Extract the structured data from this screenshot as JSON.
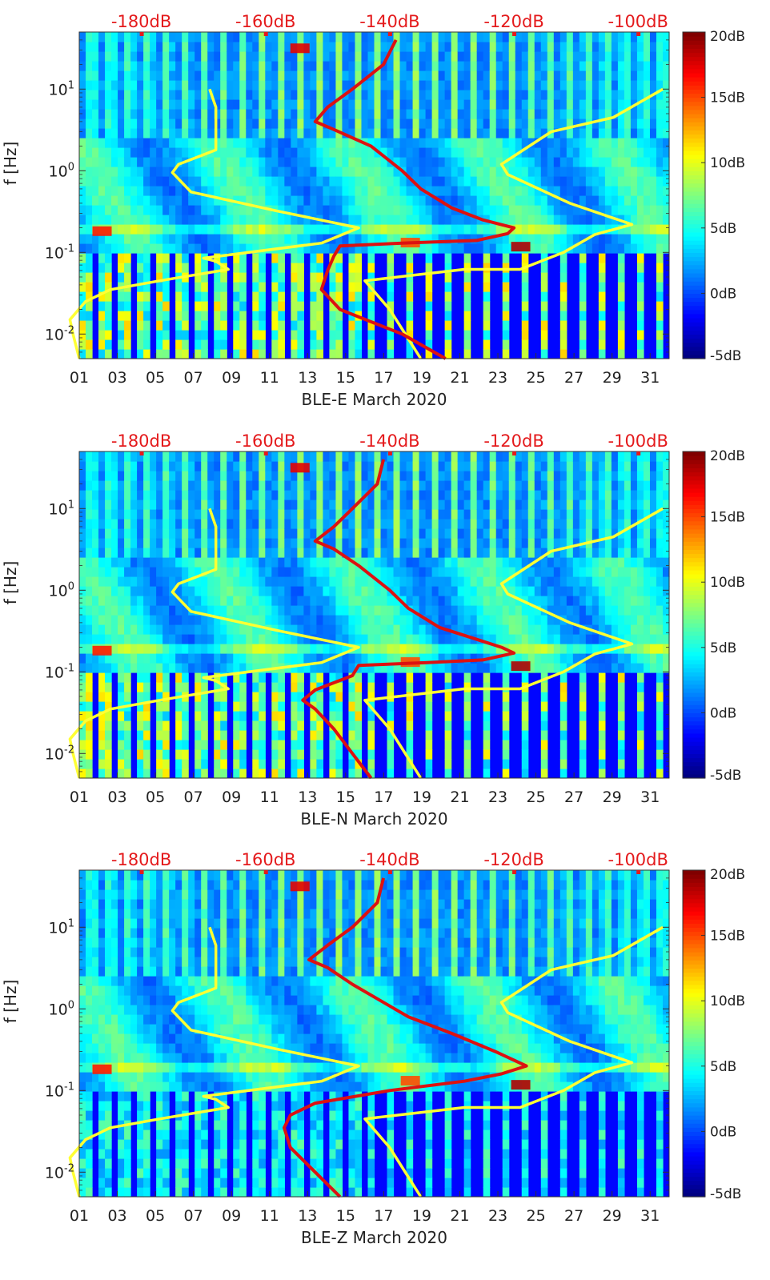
{
  "chart_data": [
    {
      "type": "heatmap",
      "title": "",
      "xlabel": "BLE-E March 2020",
      "ylabel": "f [Hz]",
      "x_tick_labels": [
        "01",
        "03",
        "05",
        "07",
        "09",
        "11",
        "13",
        "15",
        "17",
        "19",
        "21",
        "23",
        "25",
        "27",
        "29",
        "31"
      ],
      "x_range_days": [
        1,
        32
      ],
      "y_scale": "log",
      "y_range_hz": [
        0.005,
        50
      ],
      "y_tick_labels": [
        "10^-2",
        "10^-1",
        "10^0",
        "10^1"
      ],
      "top_axis_labels": [
        "-180dB",
        "-160dB",
        "-140dB",
        "-120dB",
        "-100dB"
      ],
      "top_axis_color": "#e41a1c",
      "colorbar": {
        "min": -5,
        "max": 20,
        "labels": [
          "20dB",
          "15dB",
          "10dB",
          "5dB",
          "0dB",
          "-5dB"
        ],
        "colormap": "jet"
      },
      "curves": [
        {
          "name": "yellow reference curve low (dB vs Hz)",
          "color": "#ffff33",
          "points": [
            [
              -190,
              0.005
            ],
            [
              -191,
              0.01
            ],
            [
              -191.5,
              0.015
            ],
            [
              -189,
              0.025
            ],
            [
              -185,
              0.035
            ],
            [
              -177,
              0.045
            ],
            [
              -166,
              0.062
            ],
            [
              -168,
              0.078
            ],
            [
              -170,
              0.085
            ],
            [
              -151,
              0.13
            ],
            [
              -145,
              0.2
            ],
            [
              -158,
              0.32
            ],
            [
              -172,
              0.55
            ],
            [
              -175,
              0.95
            ],
            [
              -174,
              1.2
            ],
            [
              -168,
              1.8
            ],
            [
              -168,
              2.5
            ],
            [
              -168,
              6
            ],
            [
              -169,
              10
            ]
          ]
        },
        {
          "name": "yellow reference curve high (dB vs Hz)",
          "color": "#ffff33",
          "points": [
            [
              -135,
              0.005
            ],
            [
              -140,
              0.02
            ],
            [
              -144,
              0.045
            ],
            [
              -128,
              0.062
            ],
            [
              -119,
              0.062
            ],
            [
              -112,
              0.1
            ],
            [
              -107,
              0.165
            ],
            [
              -101,
              0.22
            ],
            [
              -111,
              0.4
            ],
            [
              -121,
              0.9
            ],
            [
              -122,
              1.2
            ],
            [
              -114,
              3
            ],
            [
              -104,
              4.5
            ],
            [
              -96,
              10
            ]
          ]
        },
        {
          "name": "red station noise spectrum (dB vs Hz)",
          "color": "#dd1111",
          "points": [
            [
              -131,
              0.005
            ],
            [
              -138,
              0.01
            ],
            [
              -148,
              0.02
            ],
            [
              -151,
              0.035
            ],
            [
              -150,
              0.06
            ],
            [
              -149,
              0.09
            ],
            [
              -148,
              0.12
            ],
            [
              -138,
              0.13
            ],
            [
              -126,
              0.14
            ],
            [
              -121,
              0.17
            ],
            [
              -120,
              0.2
            ],
            [
              -125,
              0.25
            ],
            [
              -130,
              0.35
            ],
            [
              -135,
              0.6
            ],
            [
              -138,
              1.0
            ],
            [
              -143,
              2.0
            ],
            [
              -149,
              3.2
            ],
            [
              -152,
              4
            ],
            [
              -150,
              6
            ],
            [
              -146,
              10
            ],
            [
              -141,
              20
            ],
            [
              -139,
              40
            ]
          ]
        }
      ]
    },
    {
      "type": "heatmap",
      "title": "",
      "xlabel": "BLE-N March 2020",
      "ylabel": "f [Hz]",
      "x_tick_labels": [
        "01",
        "03",
        "05",
        "07",
        "09",
        "11",
        "13",
        "15",
        "17",
        "19",
        "21",
        "23",
        "25",
        "27",
        "29",
        "31"
      ],
      "x_range_days": [
        1,
        32
      ],
      "y_scale": "log",
      "y_range_hz": [
        0.005,
        50
      ],
      "y_tick_labels": [
        "10^-2",
        "10^-1",
        "10^0",
        "10^1"
      ],
      "top_axis_labels": [
        "-180dB",
        "-160dB",
        "-140dB",
        "-120dB",
        "-100dB"
      ],
      "top_axis_color": "#e41a1c",
      "colorbar": {
        "min": -5,
        "max": 20,
        "labels": [
          "20dB",
          "15dB",
          "10dB",
          "5dB",
          "0dB",
          "-5dB"
        ],
        "colormap": "jet"
      },
      "curves": [
        {
          "name": "yellow reference curve low (dB vs Hz)",
          "color": "#ffff33",
          "points": [
            [
              -190,
              0.005
            ],
            [
              -191,
              0.01
            ],
            [
              -191.5,
              0.015
            ],
            [
              -189,
              0.025
            ],
            [
              -185,
              0.035
            ],
            [
              -177,
              0.045
            ],
            [
              -166,
              0.062
            ],
            [
              -168,
              0.078
            ],
            [
              -170,
              0.085
            ],
            [
              -151,
              0.13
            ],
            [
              -145,
              0.2
            ],
            [
              -158,
              0.32
            ],
            [
              -172,
              0.55
            ],
            [
              -175,
              0.95
            ],
            [
              -174,
              1.2
            ],
            [
              -168,
              1.8
            ],
            [
              -168,
              2.5
            ],
            [
              -168,
              6
            ],
            [
              -169,
              10
            ]
          ]
        },
        {
          "name": "yellow reference curve high (dB vs Hz)",
          "color": "#ffff33",
          "points": [
            [
              -135,
              0.005
            ],
            [
              -140,
              0.02
            ],
            [
              -144,
              0.045
            ],
            [
              -128,
              0.062
            ],
            [
              -119,
              0.062
            ],
            [
              -112,
              0.1
            ],
            [
              -107,
              0.165
            ],
            [
              -101,
              0.22
            ],
            [
              -111,
              0.4
            ],
            [
              -121,
              0.9
            ],
            [
              -122,
              1.2
            ],
            [
              -114,
              3
            ],
            [
              -104,
              4.5
            ],
            [
              -96,
              10
            ]
          ]
        },
        {
          "name": "red station noise spectrum (dB vs Hz)",
          "color": "#dd1111",
          "points": [
            [
              -143,
              0.005
            ],
            [
              -146,
              0.01
            ],
            [
              -149,
              0.02
            ],
            [
              -152,
              0.035
            ],
            [
              -154,
              0.045
            ],
            [
              -152,
              0.06
            ],
            [
              -146,
              0.09
            ],
            [
              -145,
              0.12
            ],
            [
              -134,
              0.13
            ],
            [
              -125,
              0.14
            ],
            [
              -120,
              0.17
            ],
            [
              -122,
              0.2
            ],
            [
              -126,
              0.25
            ],
            [
              -132,
              0.35
            ],
            [
              -137,
              0.6
            ],
            [
              -140,
              1.0
            ],
            [
              -145,
              2.0
            ],
            [
              -149,
              3.2
            ],
            [
              -152,
              4
            ],
            [
              -149,
              6
            ],
            [
              -146,
              10
            ],
            [
              -142,
              20
            ],
            [
              -141,
              40
            ]
          ]
        }
      ]
    },
    {
      "type": "heatmap",
      "title": "",
      "xlabel": "BLE-Z March 2020",
      "ylabel": "f [Hz]",
      "x_tick_labels": [
        "01",
        "03",
        "05",
        "07",
        "09",
        "11",
        "13",
        "15",
        "17",
        "19",
        "21",
        "23",
        "25",
        "27",
        "29",
        "31"
      ],
      "x_range_days": [
        1,
        32
      ],
      "y_scale": "log",
      "y_range_hz": [
        0.005,
        50
      ],
      "y_tick_labels": [
        "10^-2",
        "10^-1",
        "10^0",
        "10^1"
      ],
      "top_axis_labels": [
        "-180dB",
        "-160dB",
        "-140dB",
        "-120dB",
        "-100dB"
      ],
      "top_axis_color": "#e41a1c",
      "colorbar": {
        "min": -5,
        "max": 20,
        "labels": [
          "20dB",
          "15dB",
          "10dB",
          "5dB",
          "0dB",
          "-5dB"
        ],
        "colormap": "jet"
      },
      "curves": [
        {
          "name": "yellow reference curve low (dB vs Hz)",
          "color": "#ffff33",
          "points": [
            [
              -190,
              0.005
            ],
            [
              -191,
              0.01
            ],
            [
              -191.5,
              0.015
            ],
            [
              -189,
              0.025
            ],
            [
              -185,
              0.035
            ],
            [
              -177,
              0.045
            ],
            [
              -166,
              0.062
            ],
            [
              -168,
              0.078
            ],
            [
              -170,
              0.085
            ],
            [
              -151,
              0.13
            ],
            [
              -145,
              0.2
            ],
            [
              -158,
              0.32
            ],
            [
              -172,
              0.55
            ],
            [
              -175,
              0.95
            ],
            [
              -174,
              1.2
            ],
            [
              -168,
              1.8
            ],
            [
              -168,
              2.5
            ],
            [
              -168,
              6
            ],
            [
              -169,
              10
            ]
          ]
        },
        {
          "name": "yellow reference curve high (dB vs Hz)",
          "color": "#ffff33",
          "points": [
            [
              -135,
              0.005
            ],
            [
              -140,
              0.02
            ],
            [
              -144,
              0.045
            ],
            [
              -128,
              0.062
            ],
            [
              -119,
              0.062
            ],
            [
              -112,
              0.1
            ],
            [
              -107,
              0.165
            ],
            [
              -101,
              0.22
            ],
            [
              -111,
              0.4
            ],
            [
              -121,
              0.9
            ],
            [
              -122,
              1.2
            ],
            [
              -114,
              3
            ],
            [
              -104,
              4.5
            ],
            [
              -96,
              10
            ]
          ]
        },
        {
          "name": "red station noise spectrum (dB vs Hz)",
          "color": "#dd1111",
          "points": [
            [
              -148,
              0.005
            ],
            [
              -152,
              0.01
            ],
            [
              -156,
              0.02
            ],
            [
              -157,
              0.035
            ],
            [
              -156,
              0.05
            ],
            [
              -152,
              0.07
            ],
            [
              -140,
              0.1
            ],
            [
              -128,
              0.13
            ],
            [
              -122,
              0.16
            ],
            [
              -118,
              0.2
            ],
            [
              -123,
              0.3
            ],
            [
              -130,
              0.5
            ],
            [
              -137,
              0.8
            ],
            [
              -141,
              1.2
            ],
            [
              -146,
              2.0
            ],
            [
              -150,
              3.2
            ],
            [
              -153,
              4
            ],
            [
              -150,
              6
            ],
            [
              -146,
              10
            ],
            [
              -142,
              20
            ],
            [
              -141,
              40
            ]
          ]
        }
      ]
    }
  ]
}
